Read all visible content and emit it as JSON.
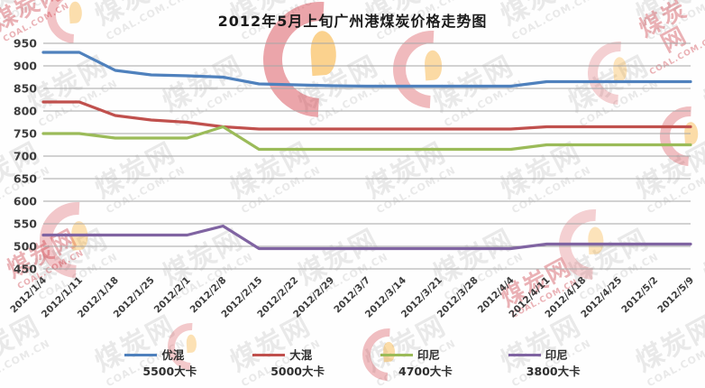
{
  "title": "2012年5月上旬广州港煤炭价格走势图",
  "watermark": {
    "cn": "煤炭网",
    "en": "COAL.COM.CN"
  },
  "chart_data": {
    "type": "line",
    "title": "2012年5月上旬广州港煤炭价格走势图",
    "x": [
      "2012/1/4",
      "2012/1/11",
      "2012/1/18",
      "2012/1/25",
      "2012/2/1",
      "2012/2/8",
      "2012/2/15",
      "2012/2/22",
      "2012/2/29",
      "2012/3/7",
      "2012/3/14",
      "2012/3/21",
      "2012/3/28",
      "2012/4/4",
      "2012/4/11",
      "2012/4/18",
      "2012/4/25",
      "2012/5/2",
      "2012/5/9"
    ],
    "series": [
      {
        "name": "优混",
        "subtitle": "5500大卡",
        "color": "#4F81BD",
        "values": [
          930,
          930,
          890,
          880,
          878,
          875,
          860,
          858,
          856,
          855,
          855,
          855,
          855,
          855,
          865,
          865,
          865,
          865,
          865
        ]
      },
      {
        "name": "大混",
        "subtitle": "5000大卡",
        "color": "#C0504D",
        "values": [
          820,
          820,
          790,
          780,
          775,
          765,
          760,
          760,
          760,
          760,
          760,
          760,
          760,
          760,
          765,
          765,
          765,
          765,
          765
        ]
      },
      {
        "name": "印尼",
        "subtitle": "4700大卡",
        "color": "#9BBB59",
        "values": [
          750,
          750,
          740,
          740,
          740,
          765,
          715,
          715,
          715,
          715,
          715,
          715,
          715,
          715,
          725,
          725,
          725,
          725,
          725
        ]
      },
      {
        "name": "印尼",
        "subtitle": "3800大卡",
        "color": "#8064A2",
        "values": [
          525,
          525,
          525,
          525,
          525,
          545,
          495,
          495,
          495,
          495,
          495,
          495,
          495,
          495,
          505,
          505,
          505,
          505,
          505
        ]
      }
    ],
    "ylim": [
      450,
      950
    ],
    "y_ticks": [
      950,
      900,
      850,
      800,
      750,
      700,
      650,
      600,
      550,
      500,
      450
    ],
    "grid": true,
    "gridline_color": "#a6a6a6",
    "legend_position": "bottom"
  }
}
